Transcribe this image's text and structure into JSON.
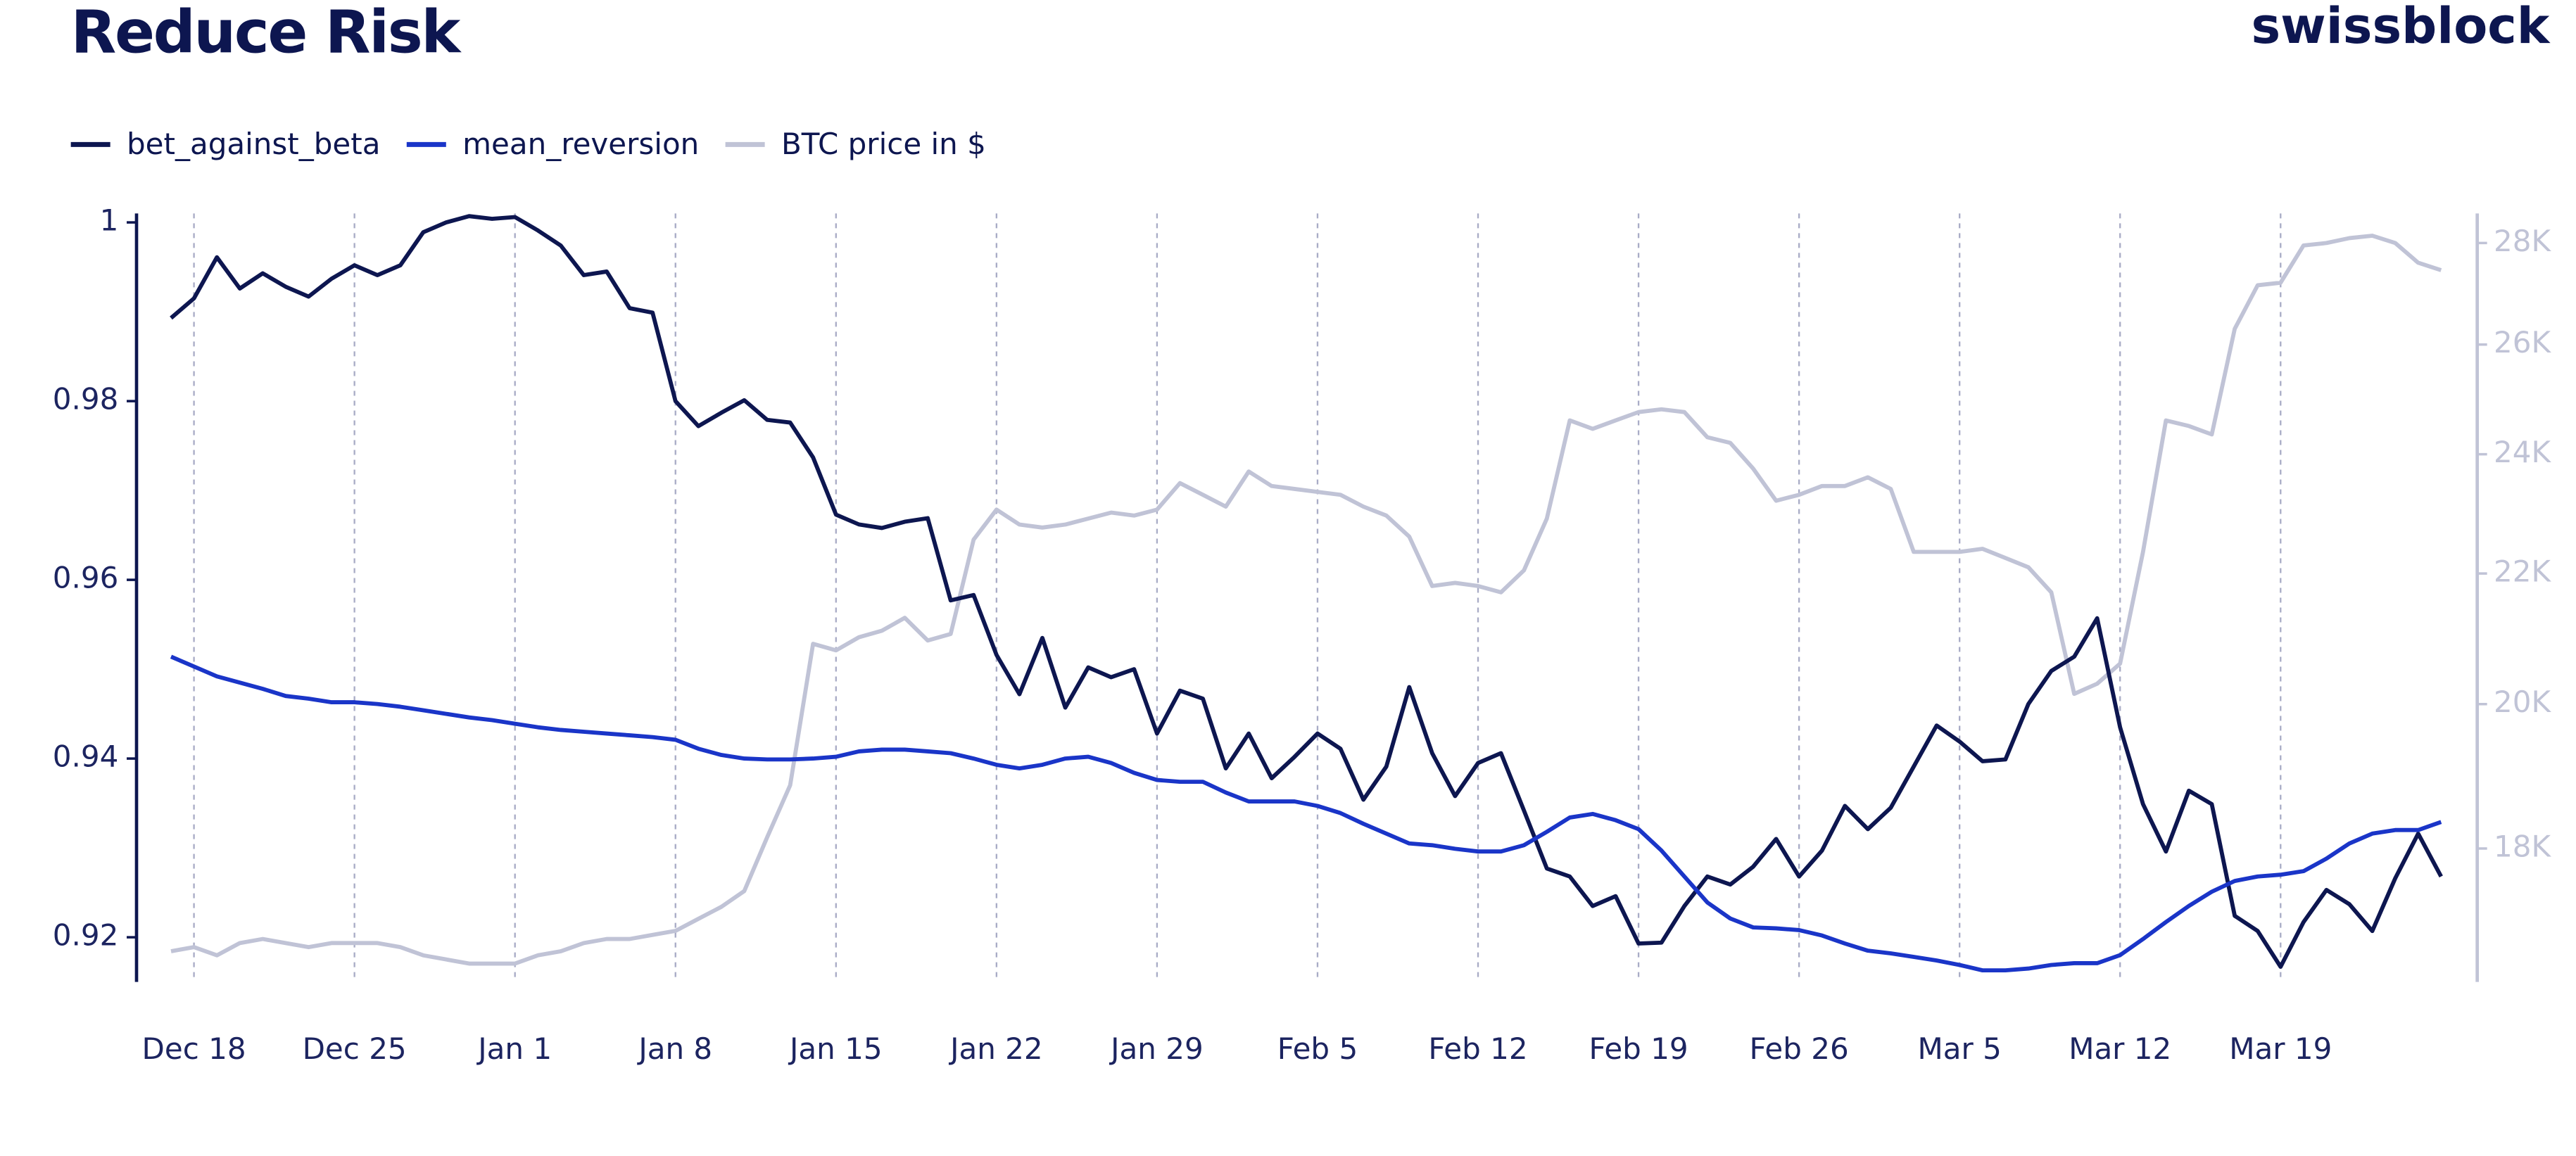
{
  "chart_data": {
    "type": "line",
    "title": "Reduce Risk",
    "brand": "swissblock",
    "categories": [
      "Dec 17",
      "Dec 18",
      "Dec 19",
      "Dec 20",
      "Dec 21",
      "Dec 22",
      "Dec 23",
      "Dec 24",
      "Dec 25",
      "Dec 26",
      "Dec 27",
      "Dec 28",
      "Dec 29",
      "Dec 30",
      "Dec 31",
      "Jan 1",
      "Jan 2",
      "Jan 3",
      "Jan 4",
      "Jan 5",
      "Jan 6",
      "Jan 7",
      "Jan 8",
      "Jan 9",
      "Jan 10",
      "Jan 11",
      "Jan 12",
      "Jan 13",
      "Jan 14",
      "Jan 15",
      "Jan 16",
      "Jan 17",
      "Jan 18",
      "Jan 19",
      "Jan 20",
      "Jan 21",
      "Jan 22",
      "Jan 23",
      "Jan 24",
      "Jan 25",
      "Jan 26",
      "Jan 27",
      "Jan 28",
      "Jan 29",
      "Jan 30",
      "Jan 31",
      "Feb 1",
      "Feb 2",
      "Feb 3",
      "Feb 4",
      "Feb 5",
      "Feb 6",
      "Feb 7",
      "Feb 8",
      "Feb 9",
      "Feb 10",
      "Feb 11",
      "Feb 12",
      "Feb 13",
      "Feb 14",
      "Feb 15",
      "Feb 16",
      "Feb 17",
      "Feb 18",
      "Feb 19",
      "Feb 20",
      "Feb 21",
      "Feb 22",
      "Feb 23",
      "Feb 24",
      "Feb 25",
      "Feb 26",
      "Feb 27",
      "Feb 28",
      "Mar 1",
      "Mar 2",
      "Mar 3",
      "Mar 4",
      "Mar 5",
      "Mar 6",
      "Mar 7",
      "Mar 8",
      "Mar 9",
      "Mar 10",
      "Mar 11",
      "Mar 12",
      "Mar 13",
      "Mar 14",
      "Mar 15",
      "Mar 16",
      "Mar 17",
      "Mar 18",
      "Mar 19",
      "Mar 20",
      "Mar 21",
      "Mar 22",
      "Mar 23",
      "Mar 24",
      "Mar 25",
      "Mar 26"
    ],
    "xticks": [
      "Dec 18",
      "Dec 25",
      "Jan 1",
      "Jan 8",
      "Jan 15",
      "Jan 22",
      "Jan 29",
      "Feb 5",
      "Feb 12",
      "Feb 19",
      "Feb 26",
      "Mar 5",
      "Mar 12",
      "Mar 19"
    ],
    "series": [
      {
        "name": "bet_against_beta",
        "color": "#0d1650",
        "values": [
          0.9893,
          0.9915,
          0.9961,
          0.9926,
          0.9943,
          0.9928,
          0.9917,
          0.9937,
          0.9952,
          0.9941,
          0.9952,
          0.9989,
          1.0,
          1.0007,
          1.0004,
          1.0006,
          0.9991,
          0.9974,
          0.9941,
          0.9945,
          0.9904,
          0.9899,
          0.98,
          0.9772,
          0.9787,
          0.9801,
          0.9779,
          0.9776,
          0.9737,
          0.9673,
          0.9662,
          0.9658,
          0.9665,
          0.9669,
          0.9577,
          0.9583,
          0.9516,
          0.9472,
          0.9535,
          0.9457,
          0.9502,
          0.9491,
          0.95,
          0.9428,
          0.9476,
          0.9467,
          0.9389,
          0.9428,
          0.9378,
          0.9402,
          0.9428,
          0.9411,
          0.9354,
          0.9391,
          0.948,
          0.9406,
          0.9358,
          0.9395,
          0.9406,
          0.9342,
          0.9277,
          0.9268,
          0.9235,
          0.9246,
          0.9193,
          0.9194,
          0.9235,
          0.9268,
          0.9259,
          0.9279,
          0.931,
          0.9268,
          0.9297,
          0.9347,
          0.9321,
          0.9345,
          0.9391,
          0.9437,
          0.9419,
          0.9397,
          0.9399,
          0.9461,
          0.9498,
          0.9514,
          0.9557,
          0.9435,
          0.9349,
          0.9296,
          0.9364,
          0.9349,
          0.9224,
          0.9207,
          0.9167,
          0.9217,
          0.9253,
          0.9237,
          0.9207,
          0.9266,
          0.9316,
          0.9268
        ]
      },
      {
        "name": "mean_reversion",
        "color": "#1a35c8",
        "values": [
          0.9514,
          0.9503,
          0.9492,
          0.9485,
          0.9478,
          0.947,
          0.9467,
          0.9463,
          0.9463,
          0.9461,
          0.9458,
          0.9454,
          0.945,
          0.9446,
          0.9443,
          0.9439,
          0.9435,
          0.9432,
          0.943,
          0.9428,
          0.9426,
          0.9424,
          0.9421,
          0.9411,
          0.9404,
          0.94,
          0.9399,
          0.9399,
          0.94,
          0.9402,
          0.9408,
          0.941,
          0.941,
          0.9408,
          0.9406,
          0.94,
          0.9393,
          0.9389,
          0.9393,
          0.94,
          0.9402,
          0.9395,
          0.9384,
          0.9376,
          0.9374,
          0.9374,
          0.9362,
          0.9352,
          0.9352,
          0.9352,
          0.9347,
          0.9339,
          0.9327,
          0.9316,
          0.9305,
          0.9303,
          0.9299,
          0.9296,
          0.9296,
          0.9303,
          0.9318,
          0.9334,
          0.9338,
          0.9331,
          0.9321,
          0.9297,
          0.9268,
          0.9239,
          0.9221,
          0.9211,
          0.921,
          0.9208,
          0.9202,
          0.9193,
          0.9185,
          0.9182,
          0.9178,
          0.9174,
          0.9169,
          0.9163,
          0.9163,
          0.9165,
          0.9169,
          0.9171,
          0.9171,
          0.918,
          0.9198,
          0.9217,
          0.9235,
          0.9251,
          0.9263,
          0.9268,
          0.927,
          0.9274,
          0.9288,
          0.9305,
          0.9316,
          0.932,
          0.932,
          0.9329
        ]
      },
      {
        "name": "BTC price in $",
        "color": "#c0c3d6",
        "axis": "y2",
        "values": [
          16700,
          16750,
          16650,
          16800,
          16850,
          16800,
          16750,
          16800,
          16800,
          16800,
          16750,
          16650,
          16600,
          16550,
          16550,
          16550,
          16650,
          16700,
          16800,
          16850,
          16850,
          16900,
          16950,
          17100,
          17250,
          17450,
          18150,
          18850,
          20900,
          20800,
          21000,
          21100,
          21300,
          20950,
          21050,
          22550,
          23050,
          22800,
          22750,
          22800,
          22900,
          23000,
          22950,
          23050,
          23500,
          23300,
          23100,
          23700,
          23450,
          23400,
          23350,
          23300,
          23100,
          22950,
          22600,
          21800,
          21850,
          21800,
          21700,
          22050,
          22900,
          24600,
          24450,
          24600,
          24750,
          24800,
          24750,
          24300,
          24200,
          23750,
          23200,
          23300,
          23450,
          23450,
          23600,
          23400,
          22350,
          22350,
          22350,
          22400,
          22250,
          22100,
          21700,
          20150,
          20300,
          20600,
          22350,
          24600,
          24500,
          24350,
          26300,
          27150,
          27200,
          27950,
          28000,
          28100,
          28150,
          28000,
          27600,
          27450
        ]
      }
    ],
    "ylim": [
      0.915,
      1.001
    ],
    "yticks": [
      0.92,
      0.94,
      0.96,
      0.98,
      1
    ],
    "y2lim": [
      16330,
      28610
    ],
    "y2scale": "log",
    "y2ticks": [
      {
        "value": 18000,
        "label": "18K"
      },
      {
        "value": 20000,
        "label": "20K"
      },
      {
        "value": 22000,
        "label": "22K"
      },
      {
        "value": 24000,
        "label": "24K"
      },
      {
        "value": 26000,
        "label": "26K"
      },
      {
        "value": 28000,
        "label": "28K"
      }
    ],
    "xgrid": true,
    "legend": "top-left"
  }
}
